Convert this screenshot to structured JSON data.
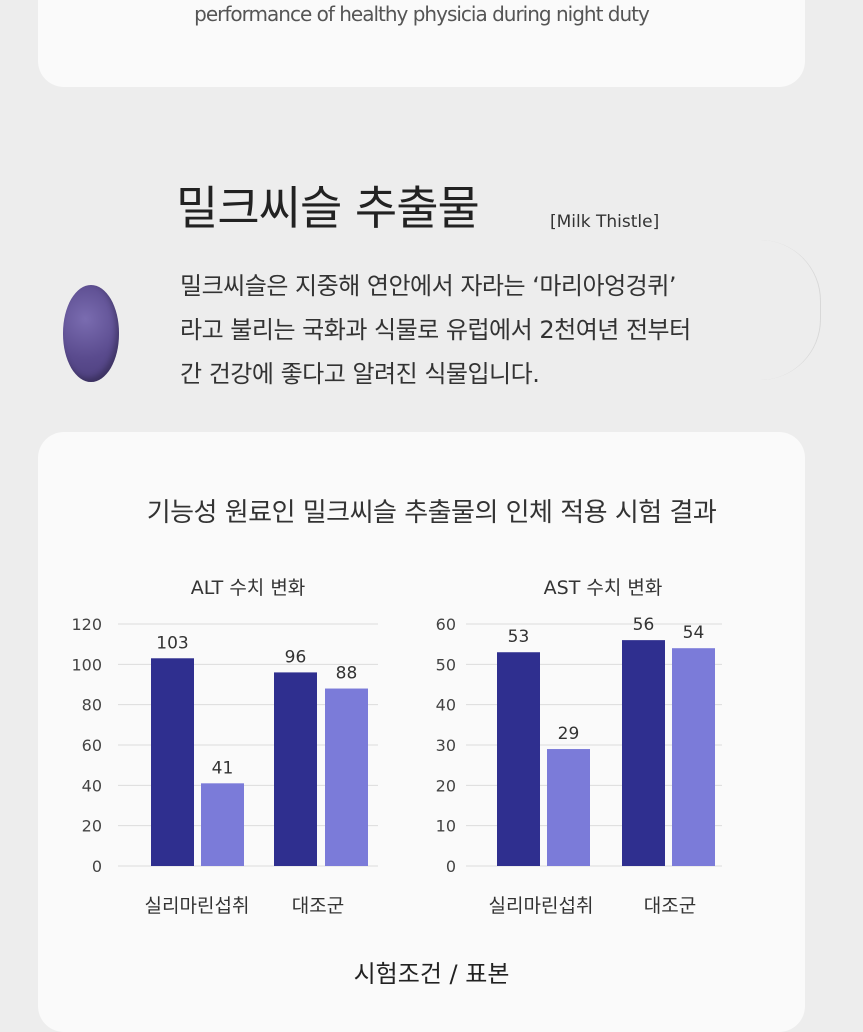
{
  "top_card": {
    "caption": "performance of healthy physicia during night duty"
  },
  "section": {
    "title": "밀크씨슬 추출물",
    "subtitle": "[Milk Thistle]",
    "description": [
      "밀크씨슬은 지중해 연안에서 자라는 ‘마리아엉겅퀴’",
      "라고 불리는 국화과 식물로 유럽에서 2천여년 전부터",
      "간 건강에 좋다고 알려진 식물입니다."
    ]
  },
  "chart_heading": "기능성 원료인 밀크씨슬 추출물의 인체 적용 시험 결과",
  "footer_label": "시험조건 / 표본",
  "colors": {
    "dark_bar": "#2f2f8f",
    "light_bar": "#7b7bd9"
  },
  "chart_data": [
    {
      "type": "bar",
      "title": "ALT 수치 변화",
      "categories": [
        "실리마린섭취",
        "대조군"
      ],
      "series": [
        {
          "values": [
            103,
            96
          ]
        },
        {
          "values": [
            41,
            88
          ]
        }
      ],
      "ylim": [
        0,
        120
      ],
      "yticks": [
        "0",
        "20",
        "40",
        "60",
        "80",
        "100",
        "120"
      ],
      "ytick_values": [
        0,
        20,
        40,
        60,
        80,
        100,
        120
      ],
      "grid": true
    },
    {
      "type": "bar",
      "title": "AST 수치 변화",
      "categories": [
        "실리마린섭취",
        "대조군"
      ],
      "series": [
        {
          "values": [
            53,
            56
          ]
        },
        {
          "values": [
            29,
            54
          ]
        }
      ],
      "ylim": [
        0,
        60
      ],
      "yticks": [
        "0",
        "10",
        "20",
        "30",
        "40",
        "50",
        "60"
      ],
      "ytick_values": [
        0,
        10,
        20,
        30,
        40,
        50,
        60
      ],
      "grid": true
    }
  ]
}
